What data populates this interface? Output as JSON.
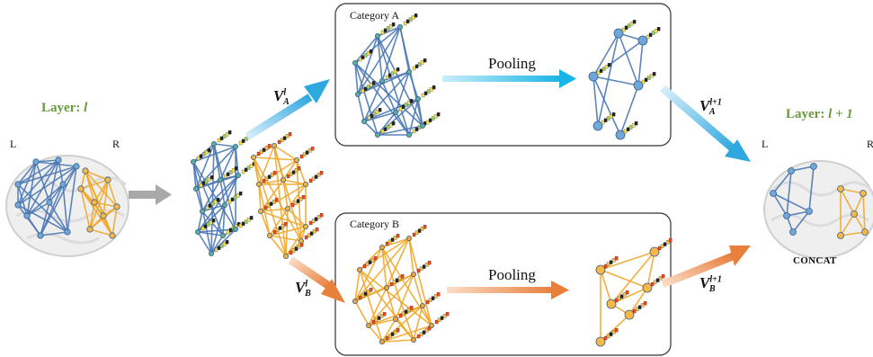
{
  "layer_in": {
    "prefix": "Layer: ",
    "var": "l"
  },
  "layer_out": {
    "prefix": "Layer: ",
    "var": "l + 1"
  },
  "side_labels": {
    "left": "L",
    "right": "R"
  },
  "category_a": {
    "title": "Category A",
    "pooling_label": "Pooling"
  },
  "category_b": {
    "title": "Category B",
    "pooling_label": "Pooling"
  },
  "edge_labels": {
    "va": {
      "base": "V",
      "sup": "l",
      "sub": "A"
    },
    "vb": {
      "base": "V",
      "sup": "l",
      "sub": "B"
    },
    "va_next": {
      "base": "V",
      "sup": "l+1",
      "sub": "A"
    },
    "vb_next": {
      "base": "V",
      "sup": "l+1",
      "sub": "B"
    }
  },
  "concat_label": "CONCAT",
  "colors": {
    "blue_edge": "#4a78b5",
    "blue_node": "#6fa8d8",
    "orange_edge": "#f0a72a",
    "orange_node": "#f6b847",
    "arrow_blue": "#2fa8df",
    "arrow_orange": "#e8803c",
    "arrow_gray": "#a9a9a9",
    "green_text": "#6a9a3c"
  }
}
